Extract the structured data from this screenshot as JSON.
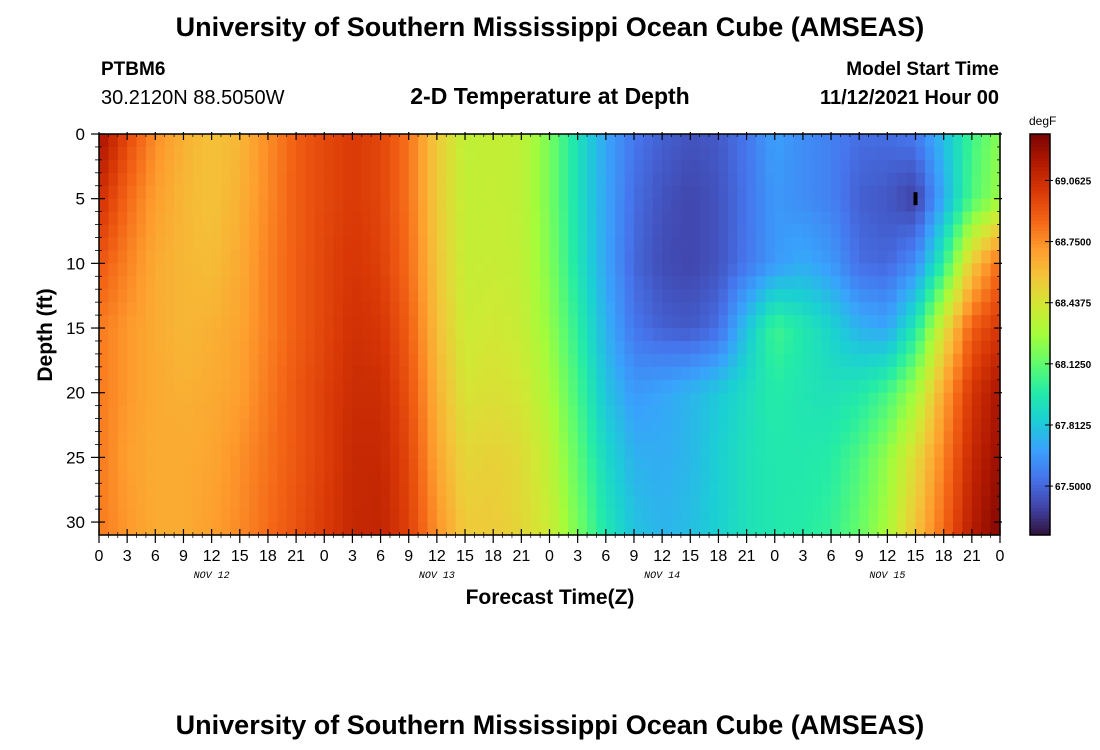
{
  "chart_data": {
    "type": "heatmap",
    "title": "University of Southern Mississippi Ocean Cube (AMSEAS)",
    "subtitle": "2-D Temperature at Depth",
    "station": "PTBM6",
    "location": "30.2120N  88.5050W",
    "model_start_label": "Model Start Time",
    "model_start_value": "11/12/2021 Hour 00",
    "xlabel": "Forecast Time(Z)",
    "ylabel": "Depth (ft)",
    "units": "degF",
    "footer_title": "University of Southern Mississippi Ocean Cube (AMSEAS)",
    "x_ticks": [
      "0",
      "3",
      "6",
      "9",
      "12",
      "15",
      "18",
      "21",
      "0",
      "3",
      "6",
      "9",
      "12",
      "15",
      "18",
      "21",
      "0",
      "3",
      "6",
      "9",
      "12",
      "15",
      "18",
      "21",
      "0",
      "3",
      "6",
      "9",
      "12",
      "15",
      "18",
      "21",
      "0"
    ],
    "x_day_labels": [
      "NOV 12",
      "NOV 13",
      "NOV 14",
      "NOV 15"
    ],
    "y_ticks": [
      "0",
      "5",
      "10",
      "15",
      "20",
      "25",
      "30"
    ],
    "xlim_hours": [
      0,
      96
    ],
    "ylim_ft": [
      0,
      31
    ],
    "colorbar_ticks": [
      "67.5000",
      "67.8125",
      "68.1250",
      "68.4375",
      "68.7500",
      "69.0625"
    ],
    "colorbar_range": [
      67.25,
      69.3
    ],
    "colormap": [
      "#30123b",
      "#4145ab",
      "#4675ed",
      "#39a2fc",
      "#1bcfd4",
      "#24eca6",
      "#61fc6c",
      "#a4fc3b",
      "#d1e834",
      "#f3c63a",
      "#fe9b2d",
      "#f36315",
      "#d93806",
      "#b11901",
      "#7a0402"
    ],
    "grid": false,
    "legend": "colorbar-right",
    "marker_depth_ft": 5,
    "marker_hours": 87,
    "time_hours": [
      0,
      3,
      6,
      9,
      12,
      15,
      18,
      21,
      24,
      27,
      30,
      33,
      36,
      39,
      42,
      45,
      48,
      51,
      54,
      57,
      60,
      63,
      66,
      69,
      72,
      75,
      78,
      81,
      84,
      87,
      90,
      93,
      96
    ],
    "profile_depth_ft": [
      0,
      5,
      10,
      15,
      20,
      25,
      31
    ],
    "temperature_profiles": [
      [
        69.2,
        69.05,
        68.9,
        68.8,
        68.8,
        68.8,
        68.8
      ],
      [
        68.95,
        68.85,
        68.78,
        68.72,
        68.72,
        68.7,
        68.72
      ],
      [
        68.75,
        68.7,
        68.66,
        68.66,
        68.66,
        68.66,
        68.66
      ],
      [
        68.64,
        68.62,
        68.62,
        68.62,
        68.64,
        68.66,
        68.66
      ],
      [
        68.58,
        68.58,
        68.6,
        68.64,
        68.66,
        68.68,
        68.7
      ],
      [
        68.62,
        68.64,
        68.66,
        68.68,
        68.7,
        68.74,
        68.76
      ],
      [
        68.75,
        68.76,
        68.78,
        68.78,
        68.8,
        68.82,
        68.84
      ],
      [
        68.88,
        68.88,
        68.88,
        68.88,
        68.9,
        68.9,
        68.92
      ],
      [
        68.95,
        68.95,
        68.96,
        68.96,
        68.98,
        68.98,
        69.0
      ],
      [
        69.0,
        69.0,
        69.02,
        69.04,
        69.06,
        69.08,
        69.08
      ],
      [
        68.96,
        68.96,
        68.98,
        69.02,
        69.06,
        69.08,
        69.1
      ],
      [
        68.82,
        68.82,
        68.84,
        68.88,
        68.92,
        68.96,
        68.98
      ],
      [
        68.55,
        68.55,
        68.57,
        68.6,
        68.64,
        68.68,
        68.74
      ],
      [
        68.36,
        68.37,
        68.38,
        68.4,
        68.44,
        68.5,
        68.55
      ],
      [
        68.38,
        68.38,
        68.39,
        68.42,
        68.46,
        68.52,
        68.55
      ],
      [
        68.36,
        68.36,
        68.37,
        68.39,
        68.43,
        68.48,
        68.5
      ],
      [
        68.18,
        68.18,
        68.2,
        68.24,
        68.3,
        68.36,
        68.4
      ],
      [
        67.92,
        67.92,
        67.94,
        68.0,
        68.06,
        68.12,
        68.18
      ],
      [
        67.7,
        67.7,
        67.7,
        67.74,
        67.8,
        67.88,
        67.95
      ],
      [
        67.55,
        67.52,
        67.5,
        67.55,
        67.66,
        67.74,
        67.8
      ],
      [
        67.48,
        67.44,
        67.42,
        67.48,
        67.7,
        67.72,
        67.75
      ],
      [
        67.44,
        67.4,
        67.4,
        67.46,
        67.75,
        67.76,
        67.78
      ],
      [
        67.46,
        67.44,
        67.44,
        67.52,
        67.82,
        67.84,
        67.85
      ],
      [
        67.55,
        67.54,
        67.55,
        67.8,
        67.9,
        67.92,
        67.92
      ],
      [
        67.68,
        67.66,
        67.66,
        68.05,
        67.98,
        67.96,
        67.96
      ],
      [
        67.62,
        67.62,
        67.72,
        67.96,
        67.94,
        67.96,
        67.98
      ],
      [
        67.58,
        67.58,
        67.66,
        67.86,
        67.92,
        67.98,
        68.02
      ],
      [
        67.52,
        67.48,
        67.52,
        67.74,
        67.96,
        68.08,
        68.14
      ],
      [
        67.52,
        67.45,
        67.5,
        67.7,
        68.06,
        68.24,
        68.3
      ],
      [
        67.56,
        67.38,
        67.62,
        67.96,
        68.28,
        68.48,
        68.58
      ],
      [
        67.78,
        67.72,
        68.0,
        68.45,
        68.68,
        68.78,
        68.85
      ],
      [
        68.05,
        68.08,
        68.55,
        68.88,
        69.02,
        69.08,
        69.14
      ],
      [
        68.22,
        68.26,
        68.85,
        69.02,
        69.18,
        69.22,
        69.28
      ]
    ]
  }
}
